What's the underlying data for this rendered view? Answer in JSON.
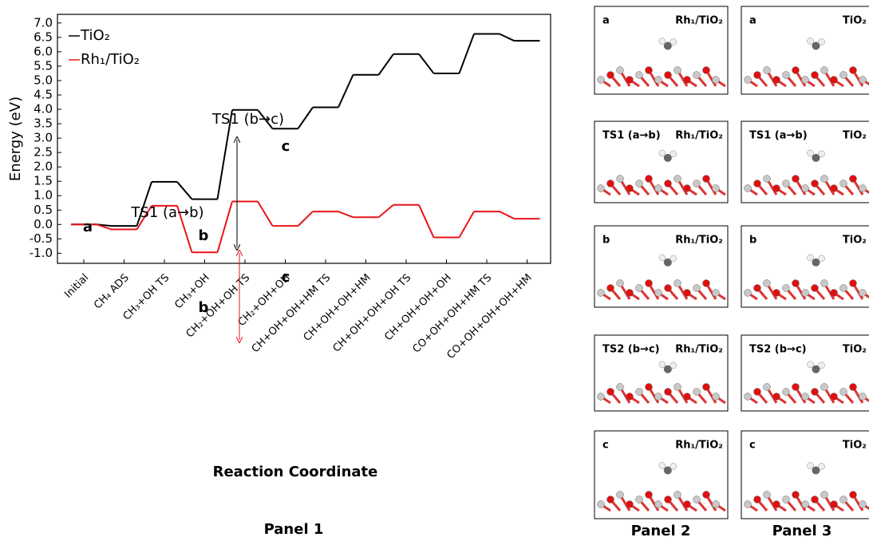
{
  "chart_data": {
    "type": "line",
    "y_label": "Energy (eV)",
    "x_label": "Reaction Coordinate",
    "categories": [
      "Initial",
      "CH₄ ADS",
      "CH₃+OH TS",
      "CH₃+OH",
      "CH₂+OH+OH TS",
      "CH₂+OH+OH",
      "CH+OH+OH+HM TS",
      "CH+OH+OH+HM",
      "CH+OH+OH+OH TS",
      "CH+OH+OH+OH",
      "CO+OH+OH+HM TS",
      "CO+OH+OH+OH+HM"
    ],
    "series": [
      {
        "name": "TiO₂",
        "color": "#000000",
        "values": [
          0,
          -0.05,
          1.48,
          0.88,
          3.98,
          3.33,
          4.07,
          5.2,
          5.92,
          5.25,
          6.62,
          6.38
        ]
      },
      {
        "name": "Rh₁/TiO₂",
        "color": "#e8141a",
        "values": [
          0,
          -0.17,
          0.65,
          -0.97,
          0.8,
          -0.05,
          0.45,
          0.25,
          0.68,
          -0.45,
          0.45,
          0.2
        ]
      }
    ],
    "ylim": [
      -1.35,
      7.3
    ],
    "yticks": [
      {
        "value": -1,
        "label": "-1.0"
      },
      {
        "value": -0.5,
        "label": "-0.5"
      },
      {
        "value": 0,
        "label": "0.0"
      },
      {
        "value": 0.5,
        "label": "0.5"
      },
      {
        "value": 1,
        "label": "1.0"
      },
      {
        "value": 1.5,
        "label": "1.5"
      },
      {
        "value": 2,
        "label": "2.0"
      },
      {
        "value": 2.5,
        "label": "2.5"
      },
      {
        "value": 3,
        "label": "3.0"
      },
      {
        "value": 3.5,
        "label": "3.5"
      },
      {
        "value": 4,
        "label": "4.0"
      },
      {
        "value": 4.5,
        "label": "4.5"
      },
      {
        "value": 5,
        "label": "5.0"
      },
      {
        "value": 5.5,
        "label": "5.5"
      },
      {
        "value": 6,
        "label": "6.0"
      },
      {
        "value": 6.5,
        "label": "6.5"
      },
      {
        "value": 7,
        "label": "7.0"
      }
    ],
    "legend": "upper left",
    "annotations": [
      "a",
      "TS1 (a→b)",
      "b",
      "b",
      "TS1 (b→c)",
      "c",
      "c"
    ]
  },
  "panels": {
    "captions": [
      "Panel 1",
      "Panel 2",
      "Panel 3"
    ],
    "structures": [
      [
        {
          "label": "a",
          "material": "Rh₁/TiO₂"
        },
        {
          "label": "a",
          "material": "TiO₂"
        }
      ],
      [
        {
          "label": "TS1 (a→b)",
          "material": "Rh₁/TiO₂"
        },
        {
          "label": "TS1 (a→b)",
          "material": "TiO₂"
        }
      ],
      [
        {
          "label": "b",
          "material": "Rh₁/TiO₂"
        },
        {
          "label": "b",
          "material": "TiO₂"
        }
      ],
      [
        {
          "label": "TS2 (b→c)",
          "material": "Rh₁/TiO₂"
        },
        {
          "label": "TS2 (b→c)",
          "material": "TiO₂"
        }
      ],
      [
        {
          "label": "c",
          "material": "Rh₁/TiO₂"
        },
        {
          "label": "c",
          "material": "TiO₂"
        }
      ]
    ]
  }
}
